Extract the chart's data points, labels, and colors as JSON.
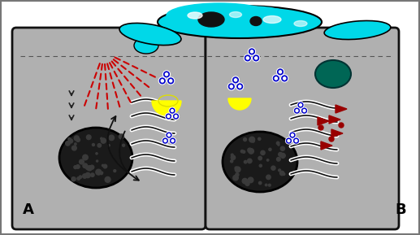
{
  "background_color": "#ffffff",
  "cell_bg_color": "#b0b0b0",
  "fungus_color": "#00d8e8",
  "yellow_body_color": "#ffff00",
  "blue_mol_color": "#0000cc",
  "blue_mol_outline": "#ffffff",
  "red_dash_color": "#cc0000",
  "dark_red_color": "#990000",
  "dark_teal_color": "#006655",
  "nucleus_color": "#2a2a2a",
  "er_white": "#ffffff",
  "er_dark": "#111111",
  "label_A": "A",
  "label_B": "B",
  "label_fontsize": 13,
  "fig_width": 5.17,
  "fig_height": 2.89,
  "dpi": 100
}
